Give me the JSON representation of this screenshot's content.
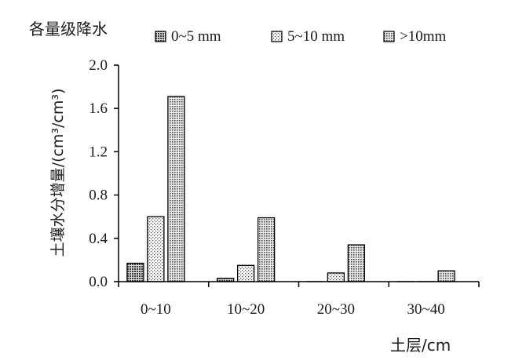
{
  "chart_data": {
    "type": "bar",
    "title": "各量级降水",
    "xlabel": "土层/cm",
    "ylabel": "土壤水分增量/(cm³/cm³)",
    "categories": [
      "0~10",
      "10~20",
      "20~30",
      "30~40"
    ],
    "ylim": [
      0,
      2.0
    ],
    "yticks": [
      "0.0",
      "0.4",
      "0.8",
      "1.2",
      "1.6",
      "2.0"
    ],
    "grid": false,
    "legend_position": "top",
    "series": [
      {
        "name": "0~5 mm",
        "pattern": "dark-dots",
        "values": [
          0.17,
          0.03,
          0.0,
          0.0
        ]
      },
      {
        "name": "5~10 mm",
        "pattern": "light-dots",
        "values": [
          0.6,
          0.15,
          0.08,
          0.0
        ]
      },
      {
        "name": ">10mm",
        "pattern": "medium-dots",
        "values": [
          1.71,
          0.59,
          0.34,
          0.1
        ]
      }
    ]
  }
}
